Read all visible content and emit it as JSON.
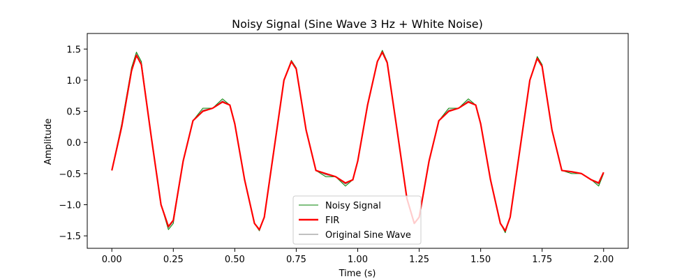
{
  "chart_data": {
    "type": "line",
    "title": "Noisy Signal (Sine Wave 3 Hz + White Noise)",
    "xlabel": "Time (s)",
    "ylabel": "Amplitude",
    "xlim": [
      -0.1,
      2.1
    ],
    "ylim": [
      -1.7,
      1.75
    ],
    "xticks": [
      0.0,
      0.25,
      0.5,
      0.75,
      1.0,
      1.25,
      1.5,
      1.75,
      2.0
    ],
    "xtick_labels": [
      "0.00",
      "0.25",
      "0.50",
      "0.75",
      "1.00",
      "1.25",
      "1.50",
      "1.75",
      "2.00"
    ],
    "yticks": [
      -1.5,
      -1.0,
      -0.5,
      0.0,
      0.5,
      1.0,
      1.5
    ],
    "ytick_labels": [
      "−1.5",
      "−1.0",
      "−0.5",
      "0.0",
      "0.5",
      "1.0",
      "1.5"
    ],
    "grid": false,
    "legend_position": "bottom-center",
    "series": [
      {
        "name": "Noisy Signal",
        "color": "#008000",
        "x": [
          0.0,
          0.04,
          0.08,
          0.1,
          0.12,
          0.16,
          0.2,
          0.23,
          0.25,
          0.29,
          0.33,
          0.37,
          0.41,
          0.45,
          0.48,
          0.5,
          0.54,
          0.58,
          0.6,
          0.62,
          0.66,
          0.7,
          0.73,
          0.75,
          0.79,
          0.83,
          0.87,
          0.91,
          0.95,
          0.98,
          1.0,
          1.04,
          1.08,
          1.1,
          1.12,
          1.16,
          1.2,
          1.23,
          1.25,
          1.29,
          1.33,
          1.37,
          1.41,
          1.45,
          1.48,
          1.5,
          1.54,
          1.58,
          1.6,
          1.62,
          1.66,
          1.7,
          1.73,
          1.75,
          1.79,
          1.83,
          1.87,
          1.91,
          1.95,
          1.98,
          2.0
        ],
        "y": [
          -0.45,
          0.3,
          1.2,
          1.45,
          1.3,
          0.1,
          -1.0,
          -1.4,
          -1.3,
          -0.3,
          0.35,
          0.55,
          0.55,
          0.7,
          0.6,
          0.3,
          -0.6,
          -1.3,
          -1.42,
          -1.2,
          -0.1,
          1.0,
          1.32,
          1.2,
          0.2,
          -0.45,
          -0.55,
          -0.55,
          -0.7,
          -0.6,
          -0.3,
          0.6,
          1.3,
          1.48,
          1.3,
          0.2,
          -0.9,
          -1.3,
          -1.2,
          -0.3,
          0.35,
          0.55,
          0.55,
          0.7,
          0.6,
          0.3,
          -0.6,
          -1.3,
          -1.45,
          -1.2,
          -0.1,
          1.0,
          1.38,
          1.25,
          0.2,
          -0.45,
          -0.5,
          -0.5,
          -0.6,
          -0.7,
          -0.5
        ]
      },
      {
        "name": "FIR",
        "color": "#ff0000",
        "x": [
          0.0,
          0.04,
          0.08,
          0.1,
          0.12,
          0.16,
          0.2,
          0.23,
          0.25,
          0.29,
          0.33,
          0.37,
          0.41,
          0.45,
          0.48,
          0.5,
          0.54,
          0.58,
          0.6,
          0.62,
          0.66,
          0.7,
          0.73,
          0.75,
          0.79,
          0.83,
          0.87,
          0.91,
          0.95,
          0.98,
          1.0,
          1.04,
          1.08,
          1.1,
          1.12,
          1.16,
          1.2,
          1.23,
          1.25,
          1.29,
          1.33,
          1.37,
          1.41,
          1.45,
          1.48,
          1.5,
          1.54,
          1.58,
          1.6,
          1.62,
          1.66,
          1.7,
          1.73,
          1.75,
          1.79,
          1.83,
          1.87,
          1.91,
          1.95,
          1.98,
          2.0
        ],
        "y": [
          -0.45,
          0.25,
          1.15,
          1.4,
          1.25,
          0.1,
          -1.0,
          -1.35,
          -1.25,
          -0.3,
          0.35,
          0.5,
          0.55,
          0.65,
          0.6,
          0.3,
          -0.6,
          -1.3,
          -1.4,
          -1.2,
          -0.1,
          1.0,
          1.3,
          1.18,
          0.2,
          -0.45,
          -0.5,
          -0.55,
          -0.65,
          -0.6,
          -0.3,
          0.6,
          1.3,
          1.45,
          1.28,
          0.2,
          -0.9,
          -1.3,
          -1.2,
          -0.3,
          0.35,
          0.5,
          0.55,
          0.65,
          0.6,
          0.3,
          -0.6,
          -1.3,
          -1.42,
          -1.2,
          -0.1,
          1.0,
          1.35,
          1.22,
          0.2,
          -0.45,
          -0.47,
          -0.5,
          -0.6,
          -0.65,
          -0.48
        ]
      },
      {
        "name": "Original Sine Wave",
        "color": "#808080",
        "x": [
          0.0,
          0.04,
          0.08,
          0.1,
          0.12,
          0.16,
          0.2,
          0.23,
          0.25,
          0.29,
          0.33,
          0.37,
          0.41,
          0.45,
          0.48,
          0.5,
          0.54,
          0.58,
          0.6,
          0.62,
          0.66,
          0.7,
          0.73,
          0.75,
          0.79,
          0.83,
          0.87,
          0.91,
          0.95,
          0.98,
          1.0,
          1.04,
          1.08,
          1.1,
          1.12,
          1.16,
          1.2,
          1.23,
          1.25,
          1.29,
          1.33,
          1.37,
          1.41,
          1.45,
          1.48,
          1.5,
          1.54,
          1.58,
          1.6,
          1.62,
          1.66,
          1.7,
          1.73,
          1.75,
          1.79,
          1.83,
          1.87,
          1.91,
          1.95,
          1.98,
          2.0
        ],
        "y": [
          -0.45,
          0.28,
          1.17,
          1.42,
          1.27,
          0.1,
          -1.0,
          -1.37,
          -1.27,
          -0.3,
          0.35,
          0.52,
          0.55,
          0.67,
          0.6,
          0.3,
          -0.6,
          -1.3,
          -1.41,
          -1.2,
          -0.1,
          1.0,
          1.31,
          1.19,
          0.2,
          -0.45,
          -0.52,
          -0.55,
          -0.67,
          -0.6,
          -0.3,
          0.6,
          1.3,
          1.46,
          1.29,
          0.2,
          -0.9,
          -1.3,
          -1.2,
          -0.3,
          0.35,
          0.52,
          0.55,
          0.67,
          0.6,
          0.3,
          -0.6,
          -1.3,
          -1.43,
          -1.2,
          -0.1,
          1.0,
          1.36,
          1.23,
          0.2,
          -0.45,
          -0.48,
          -0.5,
          -0.6,
          -0.67,
          -0.49
        ]
      }
    ]
  }
}
